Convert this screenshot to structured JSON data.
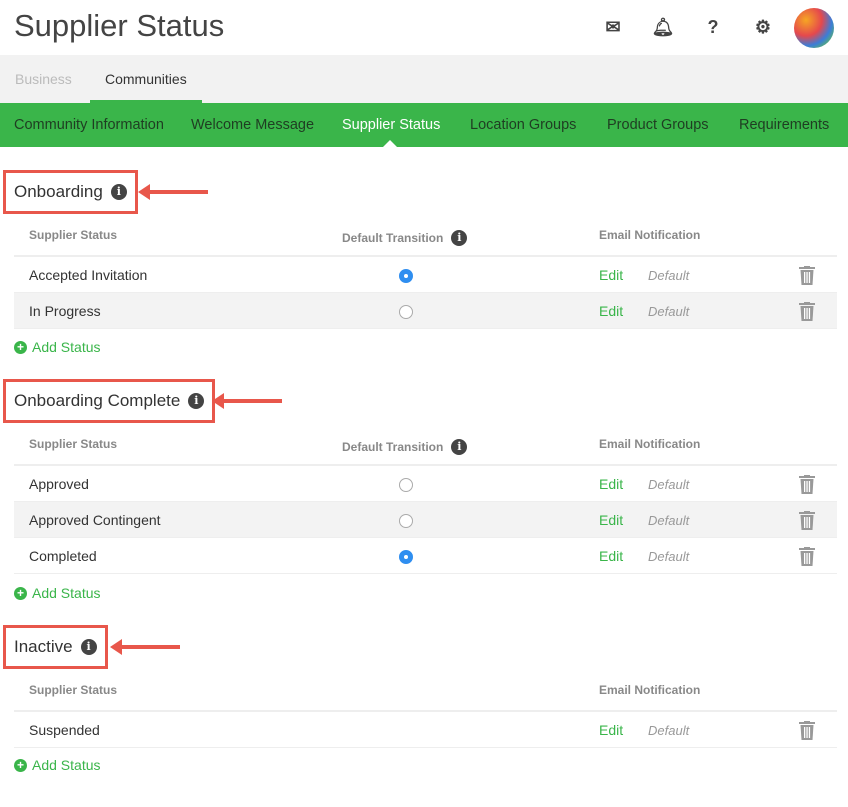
{
  "header": {
    "title": "Supplier Status",
    "icons": [
      "envelope-icon",
      "bell-icon",
      "question-icon",
      "gear-icon"
    ]
  },
  "subnav": {
    "items": [
      "Business",
      "Communities"
    ],
    "active": "Communities"
  },
  "tabs": {
    "items": [
      "Community Information",
      "Welcome Message",
      "Supplier Status",
      "Location Groups",
      "Product Groups",
      "Requirements"
    ],
    "active": "Supplier Status"
  },
  "columns": {
    "status": "Supplier Status",
    "transition": "Default Transition",
    "email": "Email Notification"
  },
  "add_label": "Add Status",
  "sections": [
    {
      "title": "Onboarding",
      "show_transition": true,
      "rows": [
        {
          "name": "Accepted Invitation",
          "default": true,
          "edit": "Edit",
          "email": "Default"
        },
        {
          "name": "In Progress",
          "default": false,
          "edit": "Edit",
          "email": "Default"
        }
      ]
    },
    {
      "title": "Onboarding Complete",
      "show_transition": true,
      "rows": [
        {
          "name": "Approved",
          "default": false,
          "edit": "Edit",
          "email": "Default"
        },
        {
          "name": "Approved Contingent",
          "default": false,
          "edit": "Edit",
          "email": "Default"
        },
        {
          "name": "Completed",
          "default": true,
          "edit": "Edit",
          "email": "Default"
        }
      ]
    },
    {
      "title": "Inactive",
      "show_transition": false,
      "rows": [
        {
          "name": "Suspended",
          "default": false,
          "edit": "Edit",
          "email": "Default"
        }
      ]
    }
  ],
  "colors": {
    "accent": "#3ab54a",
    "highlight": "#e8574b",
    "radio": "#2f8ef0"
  }
}
